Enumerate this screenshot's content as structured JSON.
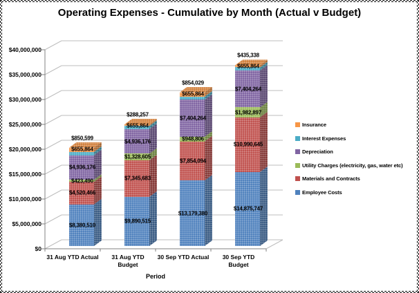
{
  "chart_data": {
    "type": "bar",
    "subtype": "3d-stacked-column",
    "title": "Operating Expenses - Cumulative by Month (Actual v Budget)",
    "xlabel": "Period",
    "ylabel": "",
    "ylim": [
      0,
      40000000
    ],
    "y_tick_step": 5000000,
    "y_tick_labels": [
      "$0",
      "$5,000,000",
      "$10,000,000",
      "$15,000,000",
      "$20,000,000",
      "$25,000,000",
      "$30,000,000",
      "$35,000,000",
      "$40,000,000"
    ],
    "grid": true,
    "legend_position": "right",
    "categories": [
      "31 Aug YTD Actual",
      "31 Aug YTD Budget",
      "30 Sep YTD Actual",
      "30 Sep YTD Budget"
    ],
    "categories_display": [
      [
        "31 Aug YTD Actual"
      ],
      [
        "31 Aug YTD",
        "Budget"
      ],
      [
        "30 Sep YTD Actual"
      ],
      [
        "30 Sep YTD",
        "Budget"
      ]
    ],
    "series": [
      {
        "name": "Employee Costs",
        "color": "#4F81BD",
        "values": [
          8380510,
          9890515,
          13179380,
          14875747
        ],
        "labels": [
          "$8,380,510",
          "$9,890,515",
          "$13,179,380",
          "$14,875,747"
        ]
      },
      {
        "name": "Materials and Contracts",
        "color": "#C0504D",
        "values": [
          4520466,
          7345683,
          7854094,
          10990645
        ],
        "labels": [
          "$4,520,466",
          "$7,345,683",
          "$7,854,094",
          "$10,990,645"
        ]
      },
      {
        "name": "Utility Charges (electricity, gas, water etc)",
        "color": "#9BBB59",
        "values": [
          423490,
          1328605,
          948806,
          1982897
        ],
        "labels": [
          "$423,490",
          "$1,328,605",
          "$948,806",
          "$1,982,897"
        ]
      },
      {
        "name": "Depreciation",
        "color": "#8064A2",
        "values": [
          4936176,
          4936176,
          7404264,
          7404264
        ],
        "labels": [
          "$4,936,176",
          "$4,936,176",
          "$7,404,264",
          "$7,404,264"
        ]
      },
      {
        "name": "Interest Expenses",
        "color": "#4BACC6",
        "values": [
          655864,
          655864,
          655864,
          655864
        ],
        "labels": [
          "$655,864",
          "$655,864",
          "$655,864",
          "$655,864"
        ]
      },
      {
        "name": "Insurance",
        "color": "#F79646",
        "values": [
          850599,
          288257,
          854029,
          435338
        ],
        "labels": [
          "$850,599",
          "$288,257",
          "$854,029",
          "$435,338"
        ]
      }
    ]
  },
  "colors": {
    "gridline": "#BDBDBD",
    "axis": "#808080",
    "background": "#FFFFFF",
    "label_text": "#000000"
  }
}
